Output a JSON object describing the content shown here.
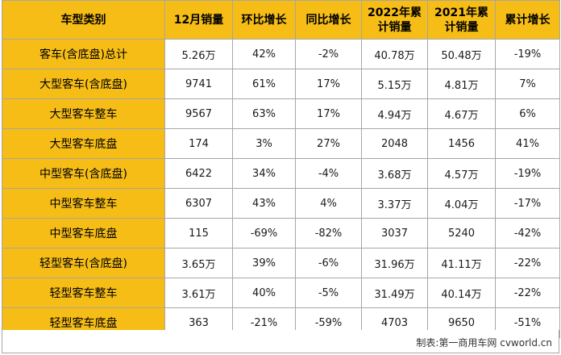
{
  "table": {
    "headers": [
      {
        "lines": [
          "车型类别"
        ]
      },
      {
        "lines": [
          "12月销量"
        ]
      },
      {
        "lines": [
          "环比增长"
        ]
      },
      {
        "lines": [
          "同比增长"
        ]
      },
      {
        "lines": [
          "2022年累",
          "计销量"
        ]
      },
      {
        "lines": [
          "2021年累",
          "计销量"
        ]
      },
      {
        "lines": [
          "累计增长"
        ]
      }
    ],
    "rows": [
      [
        "客车(含底盘)总计",
        "5.26万",
        "42%",
        "-2%",
        "40.78万",
        "50.48万",
        "-19%"
      ],
      [
        "大型客车(含底盘)",
        "9741",
        "61%",
        "17%",
        "5.15万",
        "4.81万",
        "7%"
      ],
      [
        "大型客车整车",
        "9567",
        "63%",
        "17%",
        "4.94万",
        "4.67万",
        "6%"
      ],
      [
        "大型客车底盘",
        "174",
        "3%",
        "27%",
        "2048",
        "1456",
        "41%"
      ],
      [
        "中型客车(含底盘)",
        "6422",
        "34%",
        "-4%",
        "3.68万",
        "4.57万",
        "-19%"
      ],
      [
        "中型客车整车",
        "6307",
        "43%",
        "4%",
        "3.37万",
        "4.04万",
        "-17%"
      ],
      [
        "中型客车底盘",
        "115",
        "-69%",
        "-82%",
        "3037",
        "5240",
        "-42%"
      ],
      [
        "轻型客车(含底盘)",
        "3.65万",
        "39%",
        "-6%",
        "31.96万",
        "41.11万",
        "-22%"
      ],
      [
        "轻型客车整车",
        "3.61万",
        "40%",
        "-5%",
        "31.49万",
        "40.14万",
        "-22%"
      ],
      [
        "轻型客车底盘",
        "363",
        "-21%",
        "-59%",
        "4703",
        "9650",
        "-51%"
      ]
    ]
  },
  "footer": {
    "credit": "制表:第一商用车网 cvworld.cn"
  },
  "colors": {
    "header_fill": "#f6bd16",
    "border": "#a6a6a6"
  }
}
